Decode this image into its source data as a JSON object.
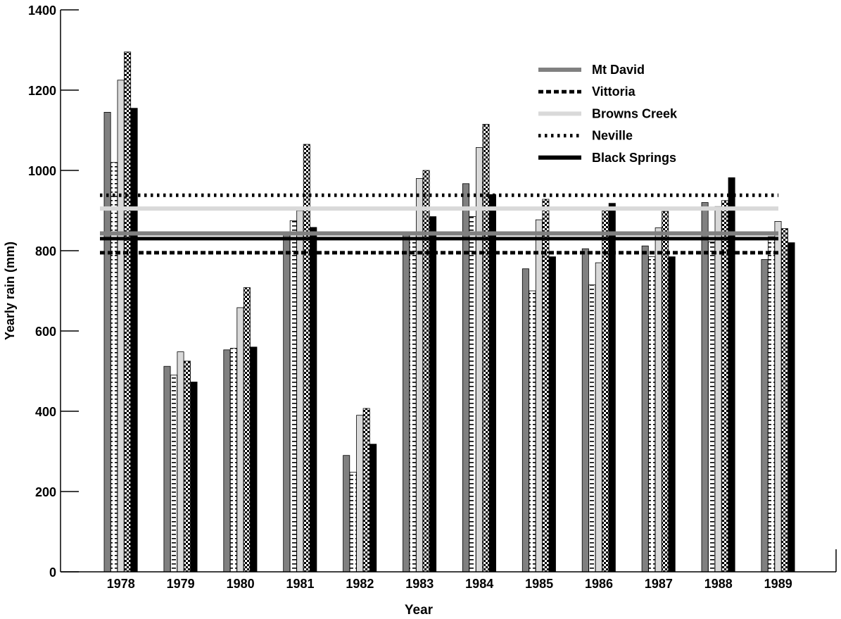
{
  "chart_data": {
    "type": "bar",
    "title": "",
    "xlabel": "Year",
    "ylabel": "Yearly rain (mm)",
    "ylim": [
      0,
      1400
    ],
    "yticks": [
      0,
      200,
      400,
      600,
      800,
      1000,
      1200,
      1400
    ],
    "categories": [
      "1978",
      "1979",
      "1980",
      "1981",
      "1982",
      "1983",
      "1984",
      "1985",
      "1986",
      "1987",
      "1988",
      "1989"
    ],
    "series": [
      {
        "name": "Mt David",
        "color": "#808080",
        "pattern": "solid",
        "values": [
          1145,
          512,
          553,
          840,
          290,
          840,
          967,
          755,
          805,
          812,
          920,
          778
        ]
      },
      {
        "name": "Vittoria",
        "color": "#000000",
        "pattern": "dashes",
        "values": [
          1020,
          490,
          557,
          875,
          248,
          842,
          885,
          700,
          715,
          785,
          822,
          835
        ]
      },
      {
        "name": "Browns Creek",
        "color": "#d9d9d9",
        "pattern": "solid",
        "values": [
          1225,
          548,
          658,
          900,
          390,
          980,
          1057,
          877,
          770,
          857,
          910,
          873
        ]
      },
      {
        "name": "Neville",
        "color": "#000000",
        "pattern": "checker",
        "values": [
          1295,
          525,
          708,
          1065,
          407,
          1000,
          1115,
          928,
          900,
          898,
          925,
          855
        ]
      },
      {
        "name": "Black Springs",
        "color": "#000000",
        "pattern": "solid",
        "values": [
          1155,
          473,
          560,
          858,
          318,
          885,
          940,
          785,
          918,
          785,
          982,
          820
        ]
      }
    ],
    "averages": [
      {
        "series": "Mt David",
        "value": 843,
        "style": "solid",
        "color": "#808080"
      },
      {
        "series": "Vittoria",
        "value": 795,
        "style": "dashed",
        "color": "#000000"
      },
      {
        "series": "Browns Creek",
        "value": 905,
        "style": "solid",
        "color": "#d9d9d9"
      },
      {
        "series": "Neville",
        "value": 938,
        "style": "dotted",
        "color": "#000000"
      },
      {
        "series": "Black Springs",
        "value": 830,
        "style": "solid",
        "color": "#000000"
      }
    ],
    "legend": {
      "position": "top-right",
      "entries": [
        {
          "label": "Mt David",
          "color": "#808080",
          "style": "solid"
        },
        {
          "label": "Vittoria",
          "color": "#000000",
          "style": "dashed"
        },
        {
          "label": "Browns Creek",
          "color": "#d9d9d9",
          "style": "solid"
        },
        {
          "label": "Neville",
          "color": "#000000",
          "style": "dotted"
        },
        {
          "label": "Black Springs",
          "color": "#000000",
          "style": "solid"
        }
      ]
    },
    "grid": false
  }
}
